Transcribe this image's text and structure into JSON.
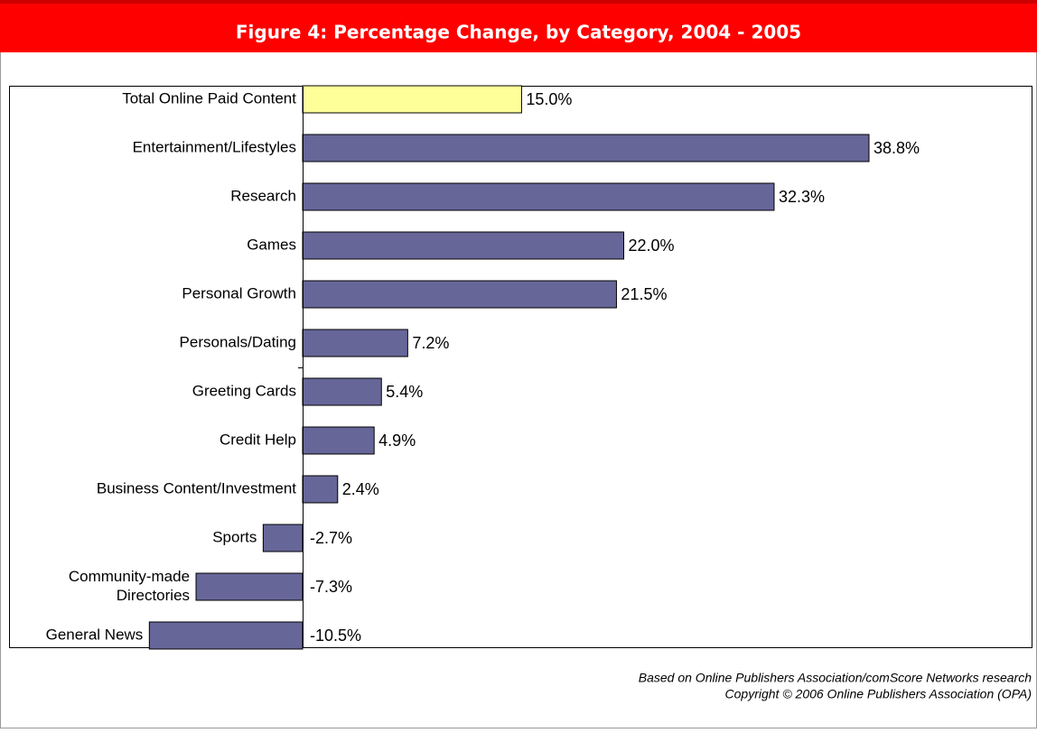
{
  "chart_data": {
    "type": "hbar",
    "title": "Figure 4: Percentage Change, by Category, 2004 - 2005",
    "categories": [
      "Total Online Paid Content",
      "Entertainment/Lifestyles",
      "Research",
      "Games",
      "Personal Growth",
      "Personals/Dating",
      "Greeting Cards",
      "Credit Help",
      "Business Content/Investment",
      "Sports",
      "Community-made Directories",
      "General News"
    ],
    "values": [
      15.0,
      38.8,
      32.3,
      22.0,
      21.5,
      7.2,
      5.4,
      4.9,
      2.4,
      -2.7,
      -7.3,
      -10.5
    ],
    "value_labels": [
      "15.0%",
      "38.8%",
      "32.3%",
      "22.0%",
      "21.5%",
      "7.2%",
      "5.4%",
      "4.9%",
      "2.4%",
      "-2.7%",
      "-7.3%",
      "-10.5%"
    ],
    "colors": [
      "#ffff99",
      "#666699",
      "#666699",
      "#666699",
      "#666699",
      "#666699",
      "#666699",
      "#666699",
      "#666699",
      "#666699",
      "#666699",
      "#666699"
    ],
    "source": "Based on Online Publishers Association/comScore Networks research",
    "copyright": "Copyright © 2006 Online Publishers Association (OPA)"
  }
}
